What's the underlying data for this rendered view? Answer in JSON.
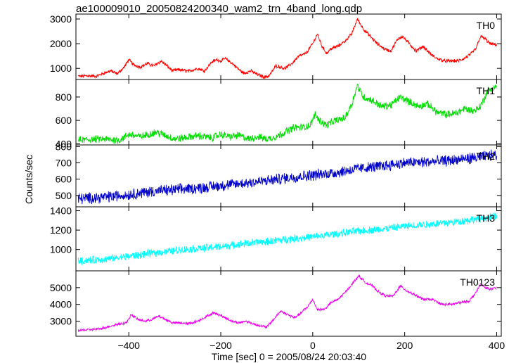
{
  "chart_data": {
    "type": "line",
    "title": "ae100009010_20050824200340_wam2_trn_4band_long.qdp",
    "xlabel": "Time [sec] 0 = 2005/08/24 20:03:40",
    "ylabel": "Counts/sec",
    "xlim": [
      -515,
      410
    ],
    "x_ticks": [
      -400,
      -200,
      0,
      200,
      400
    ],
    "panels": [
      {
        "name": "TH0",
        "color": "#ff0000",
        "ylim": [
          550,
          3200
        ],
        "y_ticks": [
          1000,
          2000,
          3000
        ],
        "noise": 60,
        "x": [
          -510,
          -490,
          -470,
          -455,
          -440,
          -425,
          -410,
          -400,
          -390,
          -375,
          -360,
          -345,
          -330,
          -320,
          -305,
          -290,
          -270,
          -250,
          -235,
          -220,
          -210,
          -200,
          -190,
          -175,
          -160,
          -150,
          -135,
          -120,
          -105,
          -95,
          -80,
          -60,
          -45,
          -30,
          -15,
          0,
          10,
          20,
          30,
          40,
          55,
          70,
          85,
          97,
          110,
          125,
          140,
          155,
          170,
          185,
          195,
          210,
          225,
          240,
          255,
          270,
          285,
          300,
          315,
          330,
          345,
          355,
          365,
          375,
          385,
          400
        ],
        "y": [
          680,
          700,
          680,
          800,
          900,
          780,
          1050,
          1350,
          1150,
          1050,
          1200,
          1100,
          1300,
          1150,
          900,
          950,
          880,
          1000,
          900,
          1250,
          1350,
          1300,
          1400,
          1200,
          950,
          800,
          900,
          750,
          650,
          700,
          1100,
          1000,
          1200,
          1500,
          1600,
          2000,
          2400,
          1900,
          1600,
          1800,
          1900,
          2100,
          2400,
          3000,
          2600,
          2300,
          2000,
          1800,
          1700,
          2200,
          2300,
          2000,
          1700,
          1900,
          1600,
          1400,
          1300,
          1300,
          1300,
          1400,
          1600,
          1800,
          2300,
          2200,
          2000,
          1950
        ]
      },
      {
        "name": "TH1",
        "color": "#00dd00",
        "ylim": [
          390,
          950
        ],
        "y_ticks": [
          400,
          600,
          800
        ],
        "noise": 28,
        "x": [
          -510,
          -460,
          -420,
          -400,
          -375,
          -340,
          -320,
          -300,
          -280,
          -250,
          -220,
          -200,
          -180,
          -160,
          -140,
          -120,
          -100,
          -80,
          -60,
          -40,
          -20,
          -5,
          5,
          15,
          30,
          50,
          70,
          85,
          97,
          110,
          130,
          150,
          170,
          190,
          210,
          230,
          250,
          270,
          290,
          310,
          330,
          350,
          365,
          380,
          400
        ],
        "y": [
          430,
          440,
          430,
          480,
          460,
          500,
          470,
          440,
          450,
          470,
          450,
          480,
          460,
          470,
          440,
          460,
          440,
          460,
          500,
          540,
          540,
          560,
          650,
          600,
          560,
          600,
          620,
          740,
          900,
          800,
          770,
          720,
          730,
          800,
          760,
          720,
          740,
          670,
          650,
          660,
          700,
          680,
          720,
          850,
          890
        ]
      },
      {
        "name": "TH2",
        "color": "#0000cc",
        "ylim": [
          430,
          810
        ],
        "y_ticks": [
          400,
          500,
          600,
          700,
          800
        ],
        "noise": 30,
        "x": [
          -510,
          -450,
          -400,
          -350,
          -300,
          -250,
          -200,
          -150,
          -100,
          -50,
          0,
          50,
          100,
          150,
          200,
          250,
          300,
          350,
          400
        ],
        "y": [
          480,
          490,
          505,
          525,
          535,
          545,
          560,
          575,
          590,
          610,
          625,
          640,
          665,
          680,
          700,
          705,
          715,
          730,
          750
        ]
      },
      {
        "name": "TH3",
        "color": "#00ffff",
        "ylim": [
          780,
          1440
        ],
        "y_ticks": [
          1000,
          1200,
          1400
        ],
        "noise": 35,
        "x": [
          -510,
          -450,
          -400,
          -350,
          -300,
          -250,
          -200,
          -150,
          -100,
          -50,
          0,
          50,
          100,
          150,
          200,
          250,
          300,
          350,
          400
        ],
        "y": [
          880,
          900,
          930,
          960,
          990,
          1010,
          1030,
          1060,
          1080,
          1110,
          1130,
          1160,
          1190,
          1210,
          1240,
          1260,
          1280,
          1310,
          1340
        ]
      },
      {
        "name": "TH0123",
        "color": "#ee00ee",
        "ylim": [
          2100,
          6000
        ],
        "y_ticks": [
          3000,
          4000,
          5000
        ],
        "noise": 70,
        "x": [
          -510,
          -480,
          -460,
          -440,
          -420,
          -405,
          -395,
          -380,
          -365,
          -350,
          -335,
          -320,
          -305,
          -290,
          -270,
          -250,
          -230,
          -215,
          -205,
          -190,
          -175,
          -160,
          -145,
          -125,
          -110,
          -100,
          -85,
          -70,
          -55,
          -40,
          -25,
          -10,
          0,
          10,
          25,
          40,
          55,
          70,
          85,
          100,
          115,
          130,
          145,
          160,
          175,
          190,
          205,
          220,
          240,
          260,
          280,
          300,
          320,
          340,
          355,
          365,
          375,
          390,
          400
        ],
        "y": [
          2450,
          2500,
          2550,
          2700,
          2850,
          2900,
          3400,
          3100,
          3000,
          3100,
          3300,
          3100,
          2900,
          2900,
          2850,
          3000,
          3300,
          3500,
          3400,
          3200,
          3000,
          2900,
          3000,
          2800,
          2700,
          2650,
          3100,
          3600,
          3400,
          3200,
          3500,
          3900,
          4300,
          3700,
          3700,
          4100,
          4300,
          4700,
          5200,
          5700,
          5300,
          5100,
          4700,
          4500,
          4500,
          5100,
          4800,
          4600,
          4300,
          4300,
          4000,
          4000,
          4100,
          4200,
          4700,
          5200,
          5000,
          4900,
          5000
        ]
      }
    ]
  }
}
